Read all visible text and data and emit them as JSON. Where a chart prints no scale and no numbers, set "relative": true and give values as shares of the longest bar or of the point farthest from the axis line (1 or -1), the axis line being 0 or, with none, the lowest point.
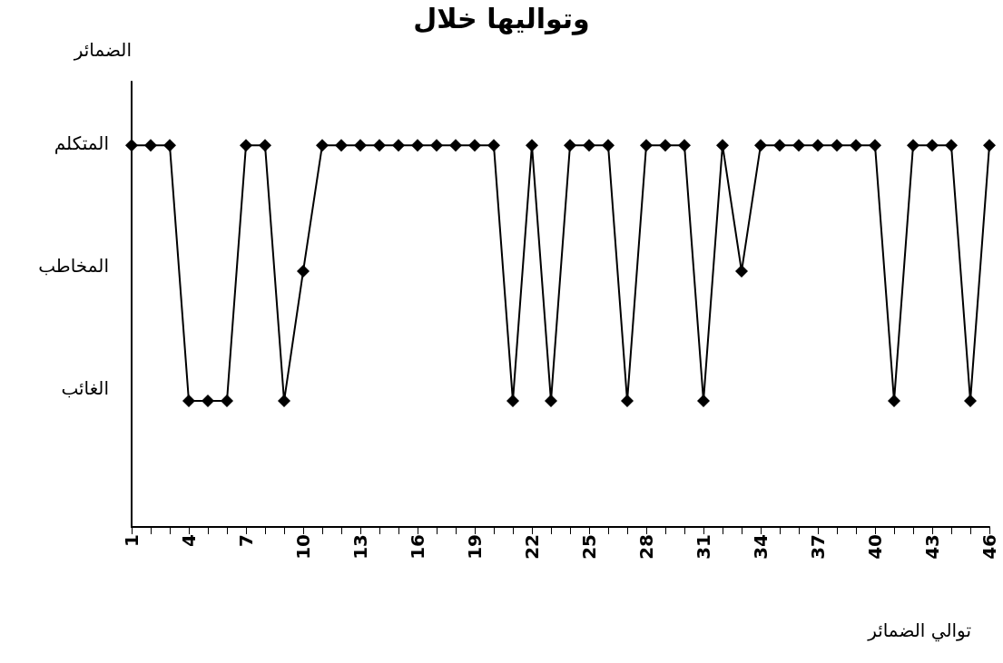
{
  "chart_data": {
    "type": "line",
    "title": "وتواليها خلال",
    "ylabel": "الضمائر",
    "xlabel": "توالي الضمائر",
    "categories": [
      "1",
      null,
      null,
      "4",
      null,
      null,
      "7",
      null,
      null,
      "10",
      null,
      null,
      "13",
      null,
      null,
      "16",
      null,
      null,
      "19",
      null,
      null,
      "22",
      null,
      null,
      "25",
      null,
      null,
      "28",
      null,
      null,
      "31",
      null,
      null,
      "34",
      null,
      null,
      "37",
      null,
      null,
      "40",
      null,
      null,
      "43",
      null,
      null,
      "46"
    ],
    "relative": true,
    "series": [
      {
        "color": "#000000",
        "values": [
          1,
          1,
          1,
          0.33,
          0.33,
          0.33,
          1,
          1,
          0.33,
          0.67,
          1,
          1,
          1,
          1,
          1,
          1,
          1,
          1,
          1,
          1,
          0.33,
          1,
          0.33,
          1,
          1,
          1,
          0.33,
          1,
          1,
          1,
          0.33,
          1,
          0.67,
          1,
          1,
          1,
          1,
          1,
          1,
          1,
          0.33,
          1,
          1,
          1,
          0.33,
          1
        ]
      }
    ],
    "annotations": [
      "المتكلم",
      "المخاطب",
      "الغائب"
    ],
    "grid": false,
    "marker": "diamond",
    "line_style": "solid"
  }
}
